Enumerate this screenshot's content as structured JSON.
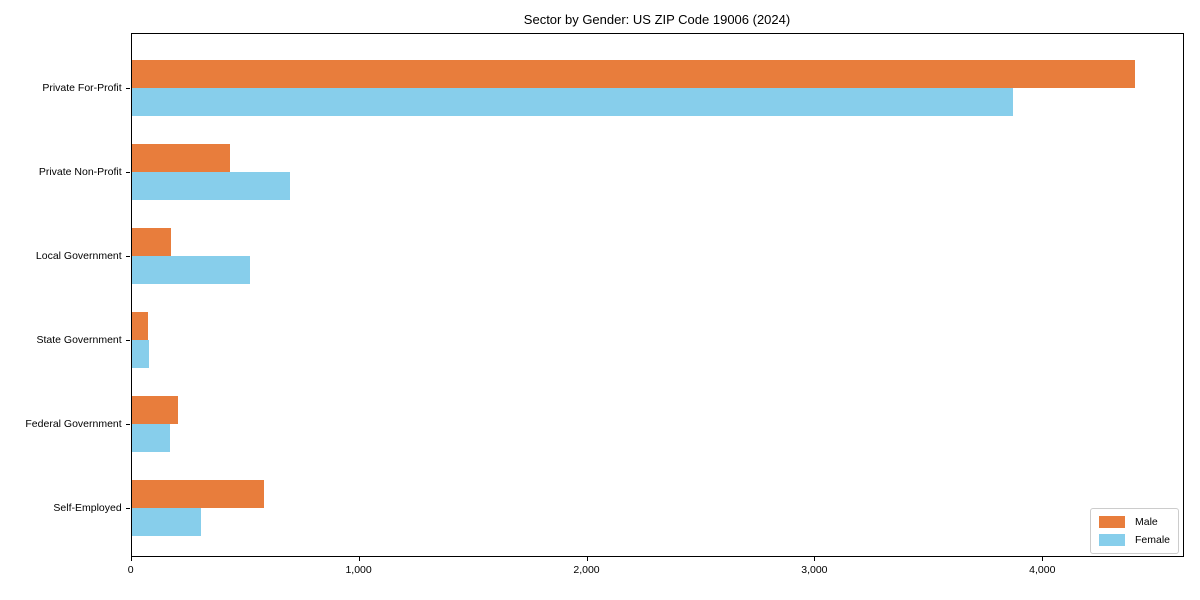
{
  "page": {
    "background": "#ffffff"
  },
  "chart_data": {
    "type": "bar",
    "orientation": "horizontal",
    "title": "Sector by Gender: US ZIP Code 19006 (2024)",
    "categories": [
      "Private For-Profit",
      "Private Non-Profit",
      "Local Government",
      "State Government",
      "Federal Government",
      "Self-Employed"
    ],
    "series": [
      {
        "name": "Male",
        "color": "#e87d3c",
        "values": [
          4403,
          431,
          172,
          70,
          202,
          582
        ]
      },
      {
        "name": "Female",
        "color": "#87ceeb",
        "values": [
          3867,
          696,
          519,
          78,
          169,
          304
        ]
      }
    ],
    "xlabel": "",
    "ylabel": "",
    "xlim": [
      0,
      4623
    ],
    "xticks": [
      {
        "value": 0,
        "label": "0"
      },
      {
        "value": 1000,
        "label": "1,000"
      },
      {
        "value": 2000,
        "label": "2,000"
      },
      {
        "value": 3000,
        "label": "3,000"
      },
      {
        "value": 4000,
        "label": "4,000"
      }
    ],
    "grid": false,
    "legend": {
      "position": "lower right"
    },
    "axis_color": "#000000"
  }
}
